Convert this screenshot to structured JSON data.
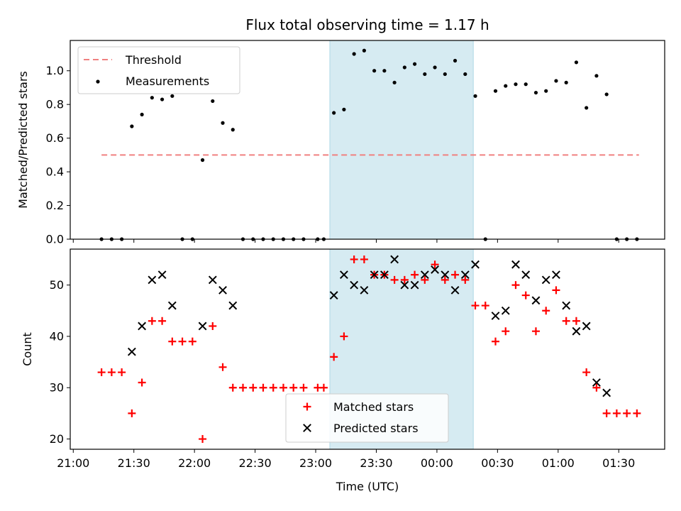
{
  "chart_data": {
    "title": "Flux total observing time = 1.17 h",
    "xlabel": "Time (UTC)",
    "x_tick_labels": [
      "21:00",
      "21:30",
      "22:00",
      "22:30",
      "23:00",
      "23:30",
      "00:00",
      "00:30",
      "01:00",
      "01:30"
    ],
    "shaded_span": {
      "start": "23:07",
      "end": "00:18",
      "color": "#add8e6"
    },
    "panels": [
      {
        "type": "scatter",
        "ylabel": "Matched/Predicted stars",
        "ylim": [
          0,
          1.18
        ],
        "y_ticks": [
          "0.0",
          "0.2",
          "0.4",
          "0.6",
          "0.8",
          "1.0"
        ],
        "legend": {
          "position": "top-left"
        },
        "threshold": {
          "name": "Threshold",
          "value": 0.5,
          "x_range": [
            "21:14",
            "01:40"
          ],
          "color": "#f08080"
        },
        "series": [
          {
            "name": "Measurements",
            "color": "#000000",
            "x": [
              "21:14",
              "21:19",
              "21:24",
              "21:29",
              "21:34",
              "21:39",
              "21:44",
              "21:49",
              "21:54",
              "21:59",
              "22:04",
              "22:09",
              "22:14",
              "22:19",
              "22:24",
              "22:29",
              "22:34",
              "22:39",
              "22:44",
              "22:49",
              "22:54",
              "23:01",
              "23:04",
              "23:09",
              "23:14",
              "23:19",
              "23:24",
              "23:29",
              "23:34",
              "23:39",
              "23:44",
              "23:49",
              "23:54",
              "23:59",
              "00:04",
              "00:09",
              "00:14",
              "00:19",
              "00:24",
              "00:29",
              "00:34",
              "00:39",
              "00:44",
              "00:49",
              "00:54",
              "00:59",
              "01:04",
              "01:09",
              "01:14",
              "01:19",
              "01:24",
              "01:29",
              "01:34",
              "01:39"
            ],
            "values": [
              0,
              0,
              0,
              0.67,
              0.74,
              0.84,
              0.83,
              0.85,
              0,
              0,
              0.47,
              0.82,
              0.69,
              0.65,
              0,
              0,
              0,
              0,
              0,
              0,
              0,
              0,
              0,
              0.75,
              0.77,
              1.1,
              1.12,
              1.0,
              1.0,
              0.93,
              1.02,
              1.04,
              0.98,
              1.02,
              0.98,
              1.06,
              0.98,
              0.85,
              0,
              0.88,
              0.91,
              0.92,
              0.92,
              0.87,
              0.88,
              0.94,
              0.93,
              1.05,
              0.78,
              0.97,
              0.86,
              0,
              0,
              0
            ]
          }
        ]
      },
      {
        "type": "scatter",
        "ylabel": "Count",
        "ylim": [
          18,
          57
        ],
        "y_ticks": [
          "20",
          "30",
          "40",
          "50"
        ],
        "legend": {
          "position": "lower-center"
        },
        "series": [
          {
            "name": "Matched stars",
            "marker": "+",
            "color": "#ff0000",
            "x": [
              "21:14",
              "21:19",
              "21:24",
              "21:29",
              "21:34",
              "21:39",
              "21:44",
              "21:49",
              "21:54",
              "21:59",
              "22:04",
              "22:09",
              "22:14",
              "22:19",
              "22:24",
              "22:29",
              "22:34",
              "22:39",
              "22:44",
              "22:49",
              "22:54",
              "23:01",
              "23:04",
              "23:09",
              "23:14",
              "23:19",
              "23:24",
              "23:29",
              "23:34",
              "23:39",
              "23:44",
              "23:49",
              "23:54",
              "23:59",
              "00:04",
              "00:09",
              "00:14",
              "00:19",
              "00:24",
              "00:29",
              "00:34",
              "00:39",
              "00:44",
              "00:49",
              "00:54",
              "00:59",
              "01:04",
              "01:09",
              "01:14",
              "01:19",
              "01:24",
              "01:29",
              "01:34",
              "01:39"
            ],
            "values": [
              33,
              33,
              33,
              25,
              31,
              43,
              43,
              39,
              39,
              39,
              20,
              42,
              34,
              30,
              30,
              30,
              30,
              30,
              30,
              30,
              30,
              30,
              30,
              36,
              40,
              55,
              55,
              52,
              52,
              51,
              51,
              52,
              51,
              54,
              51,
              52,
              51,
              46,
              46,
              39,
              41,
              50,
              48,
              41,
              45,
              49,
              43,
              43,
              33,
              30,
              25,
              25,
              25,
              25
            ]
          },
          {
            "name": "Predicted stars",
            "marker": "x",
            "color": "#000000",
            "x": [
              "21:29",
              "21:34",
              "21:39",
              "21:44",
              "21:49",
              "22:04",
              "22:09",
              "22:14",
              "22:19",
              "23:09",
              "23:14",
              "23:19",
              "23:24",
              "23:29",
              "23:34",
              "23:39",
              "23:44",
              "23:49",
              "23:54",
              "23:59",
              "00:04",
              "00:09",
              "00:14",
              "00:19",
              "00:29",
              "00:34",
              "00:39",
              "00:44",
              "00:49",
              "00:54",
              "00:59",
              "01:04",
              "01:09",
              "01:14",
              "01:19",
              "01:24"
            ],
            "values": [
              37,
              42,
              51,
              52,
              46,
              42,
              51,
              49,
              46,
              48,
              52,
              50,
              49,
              52,
              52,
              55,
              50,
              50,
              52,
              53,
              52,
              49,
              52,
              54,
              44,
              45,
              54,
              52,
              47,
              51,
              52,
              46,
              41,
              42,
              31,
              29
            ]
          }
        ]
      }
    ]
  }
}
